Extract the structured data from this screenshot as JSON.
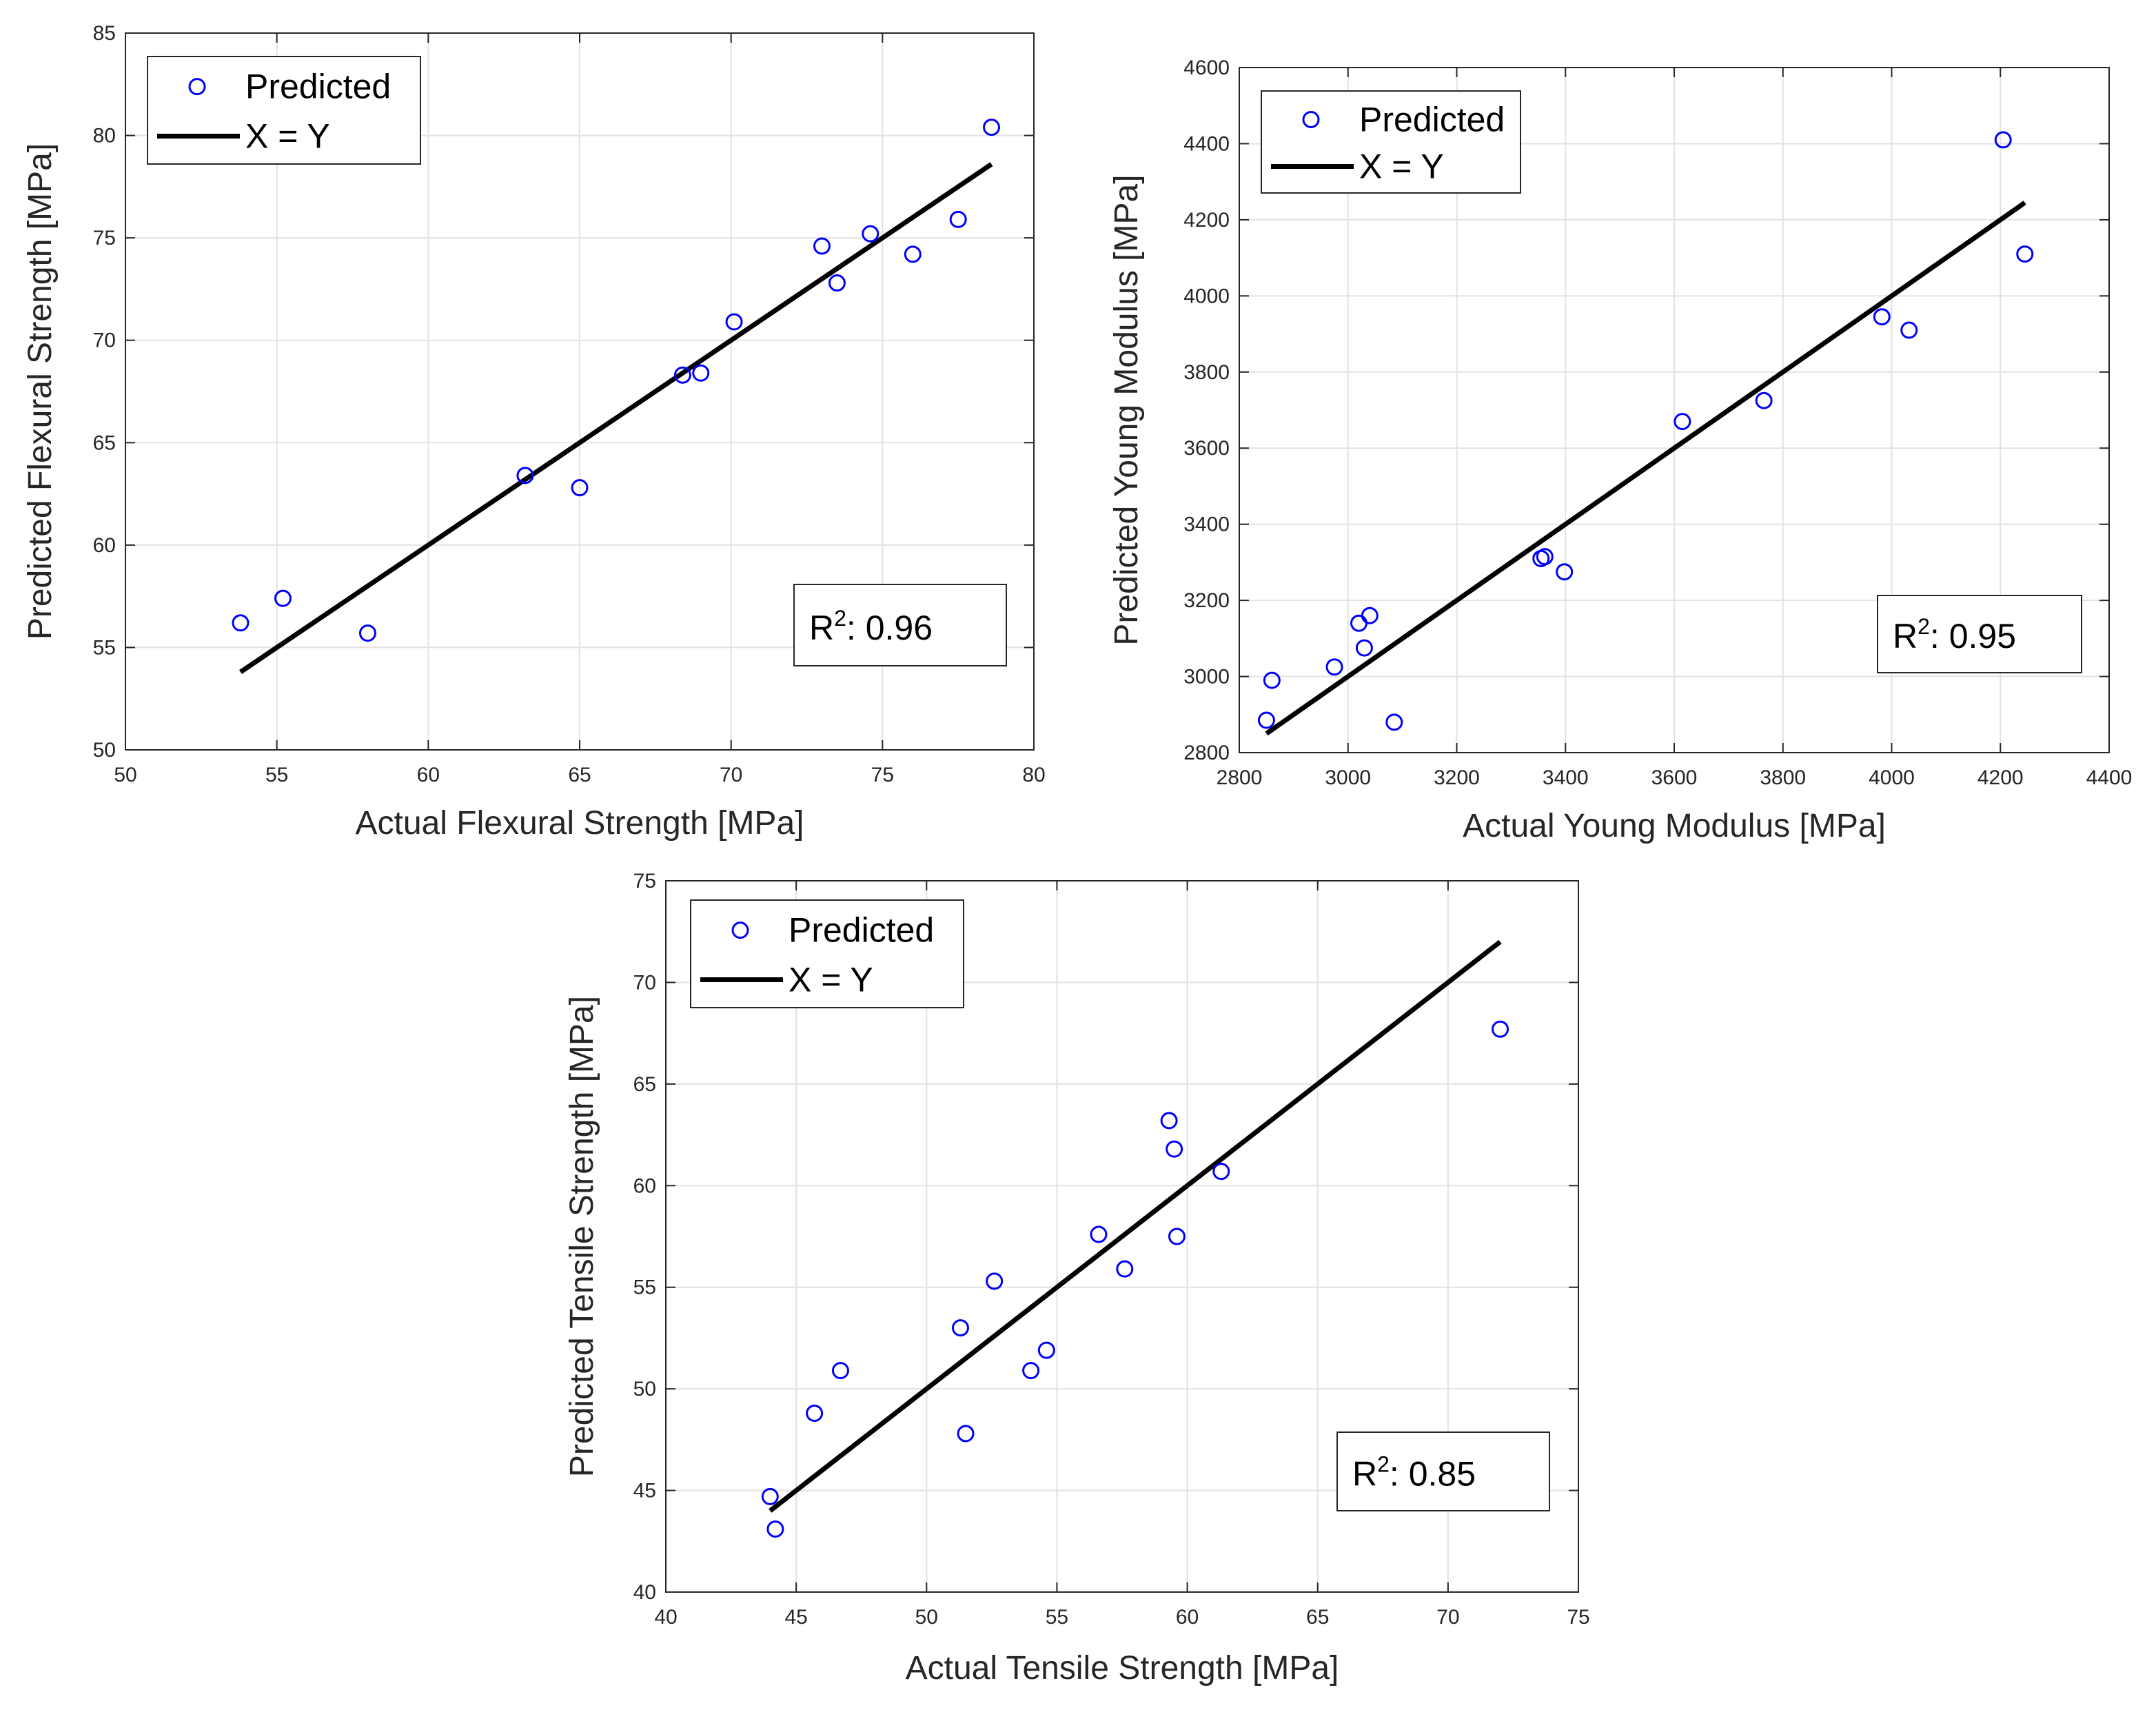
{
  "chart_data": [
    {
      "type": "scatter",
      "xlabel": "Actual Flexural  Strength [MPa]",
      "ylabel": "Predicted Flexural  Strength [MPa]",
      "xlim": [
        50,
        80
      ],
      "ylim": [
        50,
        85
      ],
      "xticks": [
        50,
        55,
        60,
        65,
        70,
        75,
        80
      ],
      "yticks": [
        50,
        55,
        60,
        65,
        70,
        75,
        80,
        85
      ],
      "grid": true,
      "legend_position": "top-left",
      "legend": [
        "Predicted",
        "X = Y"
      ],
      "r2_label": "R",
      "r2_sup": "2",
      "r2_value": ":  0.96",
      "colors": {
        "points": "#0000ff",
        "line": "#000000"
      },
      "series": [
        {
          "name": "Predicted",
          "points": [
            [
              53.8,
              56.2
            ],
            [
              55.2,
              57.4
            ],
            [
              58.0,
              55.7
            ],
            [
              63.2,
              63.4
            ],
            [
              65.0,
              62.8
            ],
            [
              68.4,
              68.3
            ],
            [
              69.0,
              68.4
            ],
            [
              70.1,
              70.9
            ],
            [
              73.0,
              74.6
            ],
            [
              73.5,
              72.8
            ],
            [
              74.6,
              75.2
            ],
            [
              76.0,
              74.2
            ],
            [
              77.5,
              75.9
            ],
            [
              78.6,
              80.4
            ]
          ]
        },
        {
          "name": "X = Y",
          "line": [
            [
              53.8,
              53.8
            ],
            [
              78.6,
              78.6
            ]
          ]
        }
      ]
    },
    {
      "type": "scatter",
      "xlabel": "Actual Young Modulus [MPa]",
      "ylabel": "Predicted Young Modulus [MPa]",
      "xlim": [
        2800,
        4400
      ],
      "ylim": [
        2800,
        4600
      ],
      "xticks": [
        2800,
        3000,
        3200,
        3400,
        3600,
        3800,
        4000,
        4200,
        4400
      ],
      "yticks": [
        2800,
        3000,
        3200,
        3400,
        3600,
        3800,
        4000,
        4200,
        4400,
        4600
      ],
      "grid": true,
      "legend_position": "top-left",
      "legend": [
        "Predicted",
        "X = Y"
      ],
      "r2_label": "R",
      "r2_sup": "2",
      "r2_value": ":  0.95",
      "colors": {
        "points": "#0000ff",
        "line": "#000000"
      },
      "series": [
        {
          "name": "Predicted",
          "points": [
            [
              2850,
              2885
            ],
            [
              2860,
              2990
            ],
            [
              2975,
              3025
            ],
            [
              3020,
              3140
            ],
            [
              3030,
              3075
            ],
            [
              3040,
              3160
            ],
            [
              3085,
              2880
            ],
            [
              3355,
              3310
            ],
            [
              3362,
              3315
            ],
            [
              3398,
              3275
            ],
            [
              3615,
              3670
            ],
            [
              3765,
              3725
            ],
            [
              3982,
              3945
            ],
            [
              4032,
              3910
            ],
            [
              4205,
              4410
            ],
            [
              4245,
              4110
            ]
          ]
        },
        {
          "name": "X = Y",
          "line": [
            [
              2850,
              2850
            ],
            [
              4245,
              4245
            ]
          ]
        }
      ]
    },
    {
      "type": "scatter",
      "xlabel": "Actual Tensile Strength [MPa]",
      "ylabel": "Predicted Tensile Strength [MPa]",
      "xlim": [
        40,
        75
      ],
      "ylim": [
        40,
        75
      ],
      "xticks": [
        40,
        45,
        50,
        55,
        60,
        65,
        70,
        75
      ],
      "yticks": [
        40,
        45,
        50,
        55,
        60,
        65,
        70,
        75
      ],
      "grid": true,
      "legend_position": "top-left",
      "legend": [
        "Predicted",
        "X = Y"
      ],
      "r2_label": "R",
      "r2_sup": "2",
      "r2_value": ":  0.85",
      "colors": {
        "points": "#0000ff",
        "line": "#000000"
      },
      "series": [
        {
          "name": "Predicted",
          "points": [
            [
              44.0,
              44.7
            ],
            [
              44.2,
              43.1
            ],
            [
              45.7,
              48.8
            ],
            [
              46.7,
              50.9
            ],
            [
              51.3,
              53.0
            ],
            [
              51.5,
              47.8
            ],
            [
              52.6,
              55.3
            ],
            [
              54.0,
              50.9
            ],
            [
              54.6,
              51.9
            ],
            [
              56.6,
              57.6
            ],
            [
              57.6,
              55.9
            ],
            [
              59.3,
              63.2
            ],
            [
              59.5,
              61.8
            ],
            [
              59.6,
              57.5
            ],
            [
              61.3,
              60.7
            ],
            [
              72.0,
              67.7
            ]
          ]
        },
        {
          "name": "X = Y",
          "line": [
            [
              44.0,
              44.0
            ],
            [
              72.0,
              72.0
            ]
          ]
        }
      ]
    }
  ]
}
